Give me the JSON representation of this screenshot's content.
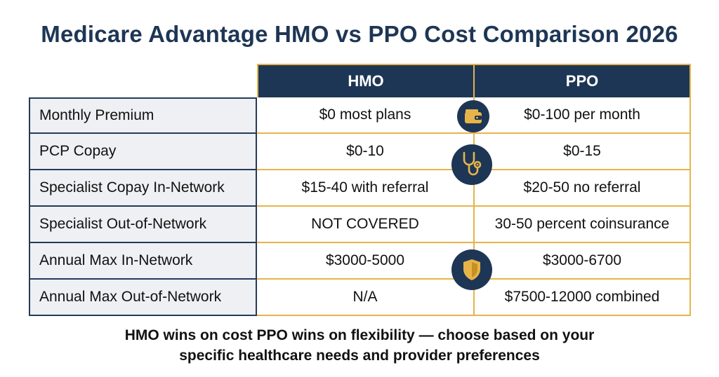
{
  "title": "Medicare Advantage HMO vs PPO Cost Comparison 2026",
  "columns": {
    "hmo": "HMO",
    "ppo": "PPO"
  },
  "rows": [
    {
      "label": "Monthly Premium",
      "hmo": "$0 most plans",
      "ppo": "$0-100 per month"
    },
    {
      "label": "PCP Copay",
      "hmo": "$0-10",
      "ppo": "$0-15"
    },
    {
      "label": "Specialist Copay In-Network",
      "hmo": "$15-40 with referral",
      "ppo": "$20-50 no referral"
    },
    {
      "label": "Specialist Out-of-Network",
      "hmo": "NOT COVERED",
      "ppo": "30-50 percent coinsurance"
    },
    {
      "label": "Annual Max In-Network",
      "hmo": "$3000-5000",
      "ppo": "$3000-6700"
    },
    {
      "label": "Annual Max Out-of-Network",
      "hmo": "N/A",
      "ppo": "$7500-12000 combined"
    }
  ],
  "icons": [
    "wallet-icon",
    "stethoscope-icon",
    "shield-icon"
  ],
  "footer": {
    "line1": "HMO wins on cost PPO wins on flexibility — choose based on your",
    "line2": "specific healthcare needs and provider preferences"
  },
  "colors": {
    "navy": "#1e3655",
    "gold": "#e6b44a",
    "label_bg": "#eef0f3"
  }
}
